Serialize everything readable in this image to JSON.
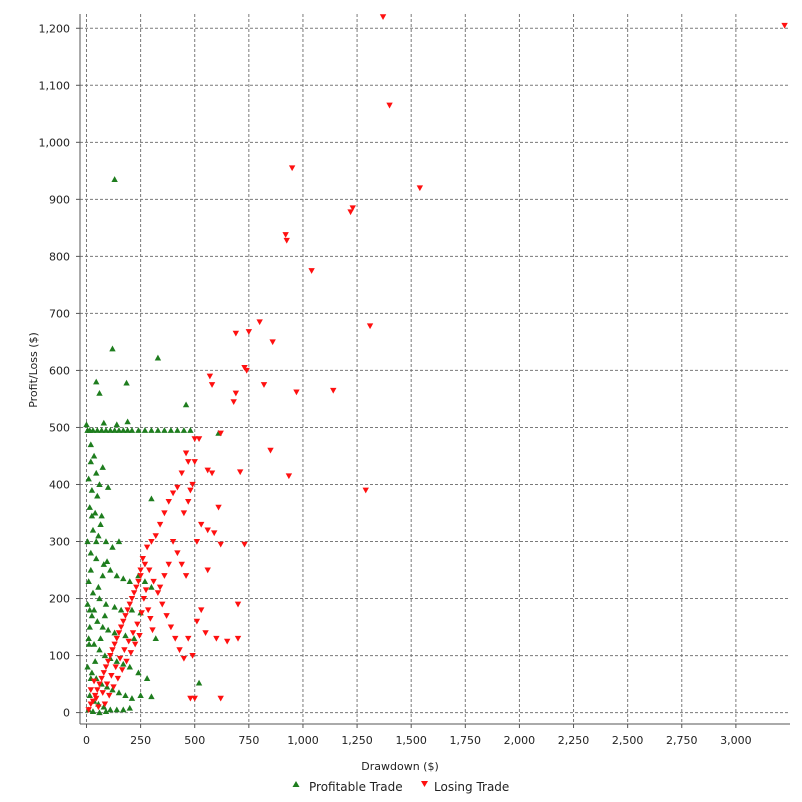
{
  "chart_data": {
    "type": "scatter",
    "title": "",
    "xlabel": "Drawdown ($)",
    "ylabel": "Profit/Loss ($)",
    "xlim": [
      -30,
      3250
    ],
    "ylim": [
      -20,
      1225
    ],
    "x_ticks": [
      0,
      250,
      500,
      750,
      1000,
      1250,
      1500,
      1750,
      2000,
      2250,
      2500,
      2750,
      3000
    ],
    "x_tick_labels": [
      "0",
      "250",
      "500",
      "750",
      "1,000",
      "1,250",
      "1,500",
      "1,750",
      "2,000",
      "2,250",
      "2,500",
      "2,750",
      "3,000"
    ],
    "y_ticks": [
      0,
      100,
      200,
      300,
      400,
      500,
      600,
      700,
      800,
      900,
      1000,
      1100,
      1200
    ],
    "y_tick_labels": [
      "0",
      "100",
      "200",
      "300",
      "400",
      "500",
      "600",
      "700",
      "800",
      "900",
      "1,000",
      "1,100",
      "1,200"
    ],
    "grid": true,
    "legend_position": "bottom-center",
    "series": [
      {
        "name": "Profitable Trade",
        "marker": "triangle-up",
        "color": "#1e7d1e",
        "points": [
          [
            130,
            935
          ],
          [
            120,
            638
          ],
          [
            330,
            622
          ],
          [
            45,
            580
          ],
          [
            60,
            560
          ],
          [
            185,
            578
          ],
          [
            460,
            540
          ],
          [
            0,
            505
          ],
          [
            5,
            495
          ],
          [
            15,
            495
          ],
          [
            30,
            495
          ],
          [
            50,
            495
          ],
          [
            70,
            495
          ],
          [
            90,
            495
          ],
          [
            110,
            495
          ],
          [
            130,
            495
          ],
          [
            150,
            495
          ],
          [
            170,
            495
          ],
          [
            190,
            495
          ],
          [
            210,
            495
          ],
          [
            240,
            495
          ],
          [
            270,
            495
          ],
          [
            300,
            495
          ],
          [
            330,
            495
          ],
          [
            360,
            495
          ],
          [
            390,
            495
          ],
          [
            420,
            495
          ],
          [
            450,
            495
          ],
          [
            480,
            495
          ],
          [
            610,
            490
          ],
          [
            140,
            505
          ],
          [
            190,
            510
          ],
          [
            80,
            508
          ],
          [
            20,
            470
          ],
          [
            35,
            450
          ],
          [
            45,
            420
          ],
          [
            10,
            410
          ],
          [
            25,
            390
          ],
          [
            60,
            400
          ],
          [
            100,
            395
          ],
          [
            15,
            360
          ],
          [
            40,
            350
          ],
          [
            70,
            345
          ],
          [
            30,
            320
          ],
          [
            55,
            310
          ],
          [
            90,
            300
          ],
          [
            120,
            290
          ],
          [
            150,
            300
          ],
          [
            5,
            300
          ],
          [
            300,
            375
          ],
          [
            20,
            280
          ],
          [
            45,
            270
          ],
          [
            80,
            260
          ],
          [
            110,
            250
          ],
          [
            140,
            240
          ],
          [
            170,
            235
          ],
          [
            200,
            230
          ],
          [
            240,
            240
          ],
          [
            270,
            230
          ],
          [
            300,
            220
          ],
          [
            10,
            230
          ],
          [
            30,
            210
          ],
          [
            60,
            200
          ],
          [
            90,
            190
          ],
          [
            130,
            185
          ],
          [
            160,
            180
          ],
          [
            210,
            180
          ],
          [
            250,
            175
          ],
          [
            5,
            190
          ],
          [
            25,
            170
          ],
          [
            50,
            160
          ],
          [
            75,
            150
          ],
          [
            100,
            145
          ],
          [
            130,
            140
          ],
          [
            180,
            135
          ],
          [
            220,
            130
          ],
          [
            320,
            130
          ],
          [
            10,
            130
          ],
          [
            35,
            120
          ],
          [
            60,
            110
          ],
          [
            85,
            100
          ],
          [
            110,
            95
          ],
          [
            140,
            90
          ],
          [
            170,
            85
          ],
          [
            200,
            80
          ],
          [
            240,
            70
          ],
          [
            280,
            60
          ],
          [
            5,
            80
          ],
          [
            25,
            70
          ],
          [
            45,
            60
          ],
          [
            70,
            50
          ],
          [
            95,
            45
          ],
          [
            120,
            40
          ],
          [
            150,
            35
          ],
          [
            180,
            30
          ],
          [
            210,
            25
          ],
          [
            250,
            30
          ],
          [
            300,
            28
          ],
          [
            520,
            52
          ],
          [
            15,
            30
          ],
          [
            35,
            20
          ],
          [
            55,
            15
          ],
          [
            80,
            10
          ],
          [
            110,
            5
          ],
          [
            140,
            5
          ],
          [
            170,
            5
          ],
          [
            200,
            8
          ],
          [
            10,
            5
          ],
          [
            30,
            2
          ],
          [
            60,
            0
          ],
          [
            90,
            2
          ],
          [
            20,
            60
          ],
          [
            40,
            90
          ],
          [
            65,
            130
          ],
          [
            85,
            170
          ],
          [
            15,
            150
          ],
          [
            35,
            180
          ],
          [
            55,
            220
          ],
          [
            75,
            240
          ],
          [
            95,
            265
          ],
          [
            20,
            250
          ],
          [
            45,
            300
          ],
          [
            65,
            330
          ],
          [
            25,
            345
          ],
          [
            50,
            380
          ],
          [
            75,
            430
          ],
          [
            20,
            440
          ],
          [
            15,
            180
          ],
          [
            12,
            120
          ]
        ]
      },
      {
        "name": "Losing Trade",
        "marker": "triangle-down",
        "color": "#ff1010",
        "points": [
          [
            1370,
            1220
          ],
          [
            3225,
            1205
          ],
          [
            1400,
            1065
          ],
          [
            950,
            955
          ],
          [
            1540,
            920
          ],
          [
            1230,
            885
          ],
          [
            1220,
            878
          ],
          [
            920,
            838
          ],
          [
            925,
            828
          ],
          [
            1040,
            775
          ],
          [
            800,
            685
          ],
          [
            1310,
            678
          ],
          [
            750,
            668
          ],
          [
            690,
            665
          ],
          [
            860,
            650
          ],
          [
            730,
            605
          ],
          [
            740,
            600
          ],
          [
            570,
            590
          ],
          [
            580,
            575
          ],
          [
            820,
            575
          ],
          [
            690,
            560
          ],
          [
            970,
            562
          ],
          [
            1140,
            565
          ],
          [
            680,
            545
          ],
          [
            620,
            490
          ],
          [
            500,
            480
          ],
          [
            520,
            480
          ],
          [
            460,
            455
          ],
          [
            850,
            460
          ],
          [
            470,
            440
          ],
          [
            500,
            440
          ],
          [
            560,
            425
          ],
          [
            580,
            420
          ],
          [
            710,
            422
          ],
          [
            440,
            420
          ],
          [
            935,
            415
          ],
          [
            490,
            400
          ],
          [
            420,
            395
          ],
          [
            400,
            385
          ],
          [
            380,
            370
          ],
          [
            1290,
            390
          ],
          [
            360,
            350
          ],
          [
            340,
            330
          ],
          [
            320,
            310
          ],
          [
            560,
            320
          ],
          [
            590,
            315
          ],
          [
            300,
            300
          ],
          [
            280,
            290
          ],
          [
            620,
            295
          ],
          [
            730,
            295
          ],
          [
            560,
            250
          ],
          [
            260,
            270
          ],
          [
            250,
            250
          ],
          [
            240,
            230
          ],
          [
            220,
            210
          ],
          [
            200,
            190
          ],
          [
            700,
            190
          ],
          [
            180,
            170
          ],
          [
            160,
            150
          ],
          [
            140,
            130
          ],
          [
            120,
            110
          ],
          [
            100,
            90
          ],
          [
            80,
            70
          ],
          [
            60,
            50
          ],
          [
            40,
            30
          ],
          [
            20,
            15
          ],
          [
            10,
            5
          ],
          [
            30,
            20
          ],
          [
            50,
            40
          ],
          [
            70,
            60
          ],
          [
            90,
            80
          ],
          [
            110,
            100
          ],
          [
            130,
            120
          ],
          [
            150,
            140
          ],
          [
            170,
            160
          ],
          [
            190,
            180
          ],
          [
            210,
            200
          ],
          [
            230,
            220
          ],
          [
            250,
            240
          ],
          [
            270,
            260
          ],
          [
            290,
            250
          ],
          [
            310,
            230
          ],
          [
            330,
            210
          ],
          [
            350,
            190
          ],
          [
            370,
            170
          ],
          [
            390,
            150
          ],
          [
            410,
            130
          ],
          [
            430,
            110
          ],
          [
            450,
            95
          ],
          [
            470,
            130
          ],
          [
            490,
            100
          ],
          [
            510,
            160
          ],
          [
            530,
            180
          ],
          [
            550,
            140
          ],
          [
            600,
            130
          ],
          [
            650,
            125
          ],
          [
            700,
            130
          ],
          [
            480,
            25
          ],
          [
            500,
            25
          ],
          [
            620,
            25
          ],
          [
            20,
            40
          ],
          [
            35,
            55
          ],
          [
            45,
            25
          ],
          [
            55,
            10
          ],
          [
            75,
            35
          ],
          [
            85,
            15
          ],
          [
            95,
            50
          ],
          [
            105,
            30
          ],
          [
            115,
            65
          ],
          [
            125,
            45
          ],
          [
            135,
            80
          ],
          [
            145,
            60
          ],
          [
            155,
            95
          ],
          [
            165,
            75
          ],
          [
            175,
            110
          ],
          [
            185,
            90
          ],
          [
            195,
            125
          ],
          [
            205,
            105
          ],
          [
            215,
            140
          ],
          [
            225,
            120
          ],
          [
            235,
            155
          ],
          [
            245,
            135
          ],
          [
            255,
            175
          ],
          [
            265,
            200
          ],
          [
            275,
            215
          ],
          [
            285,
            180
          ],
          [
            295,
            165
          ],
          [
            305,
            145
          ],
          [
            400,
            300
          ],
          [
            420,
            280
          ],
          [
            440,
            260
          ],
          [
            460,
            240
          ],
          [
            380,
            260
          ],
          [
            360,
            240
          ],
          [
            340,
            220
          ],
          [
            450,
            350
          ],
          [
            470,
            370
          ],
          [
            480,
            390
          ],
          [
            510,
            300
          ],
          [
            530,
            330
          ],
          [
            610,
            360
          ]
        ]
      }
    ]
  }
}
